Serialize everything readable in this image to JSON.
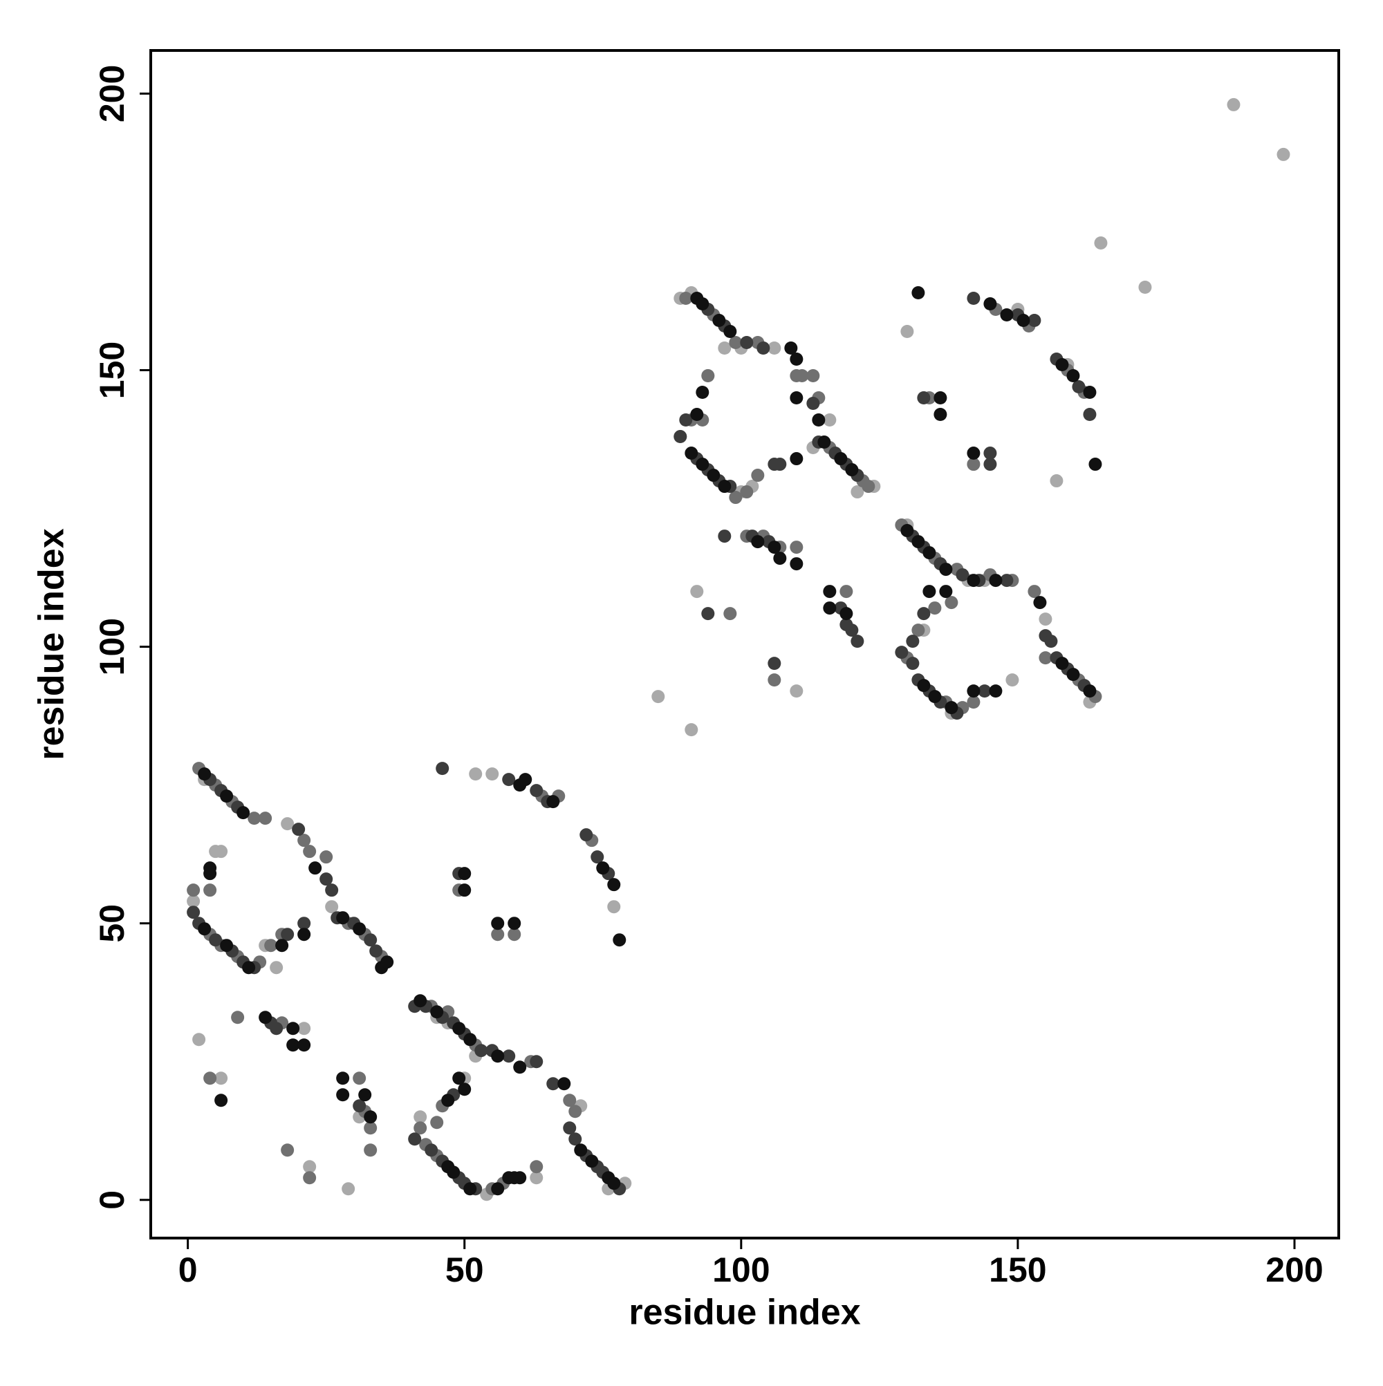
{
  "chart_data": {
    "type": "scatter",
    "xlabel": "residue index",
    "ylabel": "residue index",
    "xlim": [
      -6.7,
      208
    ],
    "ylim": [
      -6.9,
      207.8
    ],
    "xticks": [
      0,
      50,
      100,
      150,
      200
    ],
    "yticks": [
      0,
      50,
      100,
      150,
      200
    ],
    "series": [
      {
        "color": "#111111",
        "x": [
          3,
          7,
          10,
          4,
          4,
          3,
          7,
          11,
          23,
          28,
          31,
          35,
          36,
          17,
          21,
          6,
          14,
          19,
          19,
          21,
          28,
          28,
          32,
          33,
          42,
          45,
          49,
          51,
          56,
          60,
          68,
          47,
          48,
          51,
          56,
          58,
          59,
          60,
          47,
          50,
          49,
          71,
          73,
          76,
          77,
          60,
          61,
          66,
          75,
          77,
          78,
          50,
          50,
          56,
          59,
          92,
          93,
          96,
          98,
          109,
          110,
          93,
          92,
          91,
          93,
          95,
          97,
          110,
          110,
          114,
          115,
          118,
          120,
          103,
          106,
          107,
          110,
          116,
          116,
          119,
          130,
          132,
          134,
          137,
          142,
          146,
          154,
          133,
          135,
          138,
          142,
          146,
          134,
          137,
          158,
          160,
          163,
          132,
          136,
          136,
          142,
          145,
          148,
          151,
          158,
          160,
          163,
          164
        ],
        "y": [
          77,
          73,
          70,
          59,
          60,
          49,
          46,
          42,
          60,
          51,
          49,
          42,
          43,
          46,
          48,
          18,
          33,
          31,
          28,
          28,
          22,
          19,
          19,
          15,
          36,
          34,
          31,
          29,
          26,
          24,
          21,
          6,
          5,
          2,
          2,
          4,
          4,
          4,
          18,
          20,
          22,
          9,
          7,
          4,
          3,
          75,
          76,
          72,
          60,
          57,
          47,
          59,
          56,
          50,
          50,
          163,
          162,
          159,
          157,
          154,
          152,
          146,
          142,
          135,
          133,
          131,
          129,
          134,
          145,
          141,
          137,
          134,
          132,
          119,
          118,
          116,
          115,
          110,
          107,
          106,
          121,
          119,
          117,
          114,
          112,
          112,
          108,
          93,
          91,
          89,
          92,
          92,
          110,
          110,
          97,
          95,
          92,
          164,
          145,
          142,
          135,
          162,
          160,
          159,
          151,
          149,
          146,
          133
        ]
      },
      {
        "color": "#3c3c3c",
        "x": [
          4,
          6,
          9,
          1,
          2,
          5,
          8,
          10,
          12,
          20,
          25,
          26,
          27,
          30,
          33,
          34,
          18,
          21,
          15,
          16,
          31,
          41,
          43,
          46,
          48,
          50,
          53,
          55,
          58,
          63,
          66,
          41,
          44,
          46,
          49,
          50,
          52,
          48,
          69,
          70,
          72,
          74,
          75,
          78,
          58,
          63,
          65,
          72,
          74,
          76,
          46,
          49,
          89,
          90,
          94,
          97,
          101,
          104,
          92,
          94,
          96,
          98,
          106,
          107,
          113,
          114,
          117,
          119,
          121,
          97,
          102,
          105,
          118,
          119,
          120,
          121,
          94,
          106,
          131,
          133,
          136,
          140,
          143,
          148,
          155,
          156,
          129,
          131,
          132,
          134,
          136,
          139,
          144,
          131,
          133,
          157,
          159,
          162,
          133,
          145,
          145,
          142,
          150,
          153,
          157,
          161,
          163
        ],
        "y": [
          76,
          74,
          71,
          52,
          50,
          47,
          45,
          43,
          42,
          67,
          58,
          56,
          51,
          50,
          47,
          45,
          48,
          50,
          32,
          31,
          17,
          35,
          35,
          33,
          32,
          30,
          27,
          27,
          26,
          25,
          21,
          11,
          9,
          7,
          4,
          3,
          2,
          19,
          13,
          11,
          8,
          6,
          5,
          2,
          76,
          74,
          72,
          66,
          62,
          59,
          78,
          59,
          138,
          141,
          161,
          158,
          155,
          154,
          134,
          132,
          130,
          129,
          133,
          133,
          144,
          137,
          135,
          133,
          131,
          120,
          120,
          119,
          107,
          104,
          103,
          101,
          106,
          97,
          120,
          118,
          115,
          113,
          112,
          112,
          102,
          101,
          99,
          97,
          94,
          92,
          90,
          88,
          92,
          101,
          106,
          98,
          96,
          93,
          145,
          135,
          133,
          163,
          160,
          159,
          152,
          147,
          142
        ]
      },
      {
        "color": "#707070",
        "x": [
          2,
          5,
          8,
          12,
          14,
          1,
          4,
          6,
          9,
          13,
          15,
          4,
          21,
          22,
          25,
          29,
          32,
          35,
          17,
          4,
          9,
          17,
          18,
          22,
          31,
          32,
          33,
          33,
          44,
          47,
          52,
          62,
          43,
          45,
          42,
          55,
          57,
          63,
          45,
          46,
          69,
          70,
          73,
          64,
          67,
          49,
          59,
          56,
          90,
          95,
          99,
          103,
          110,
          111,
          91,
          93,
          94,
          99,
          101,
          103,
          113,
          114,
          116,
          122,
          123,
          101,
          104,
          107,
          110,
          98,
          106,
          119,
          129,
          135,
          139,
          145,
          149,
          153,
          130,
          137,
          140,
          142,
          132,
          135,
          138,
          161,
          164,
          155,
          134,
          142,
          146,
          152,
          159,
          162
        ],
        "y": [
          78,
          75,
          72,
          69,
          69,
          56,
          48,
          46,
          44,
          43,
          46,
          56,
          65,
          63,
          62,
          50,
          48,
          44,
          48,
          22,
          33,
          32,
          9,
          4,
          22,
          16,
          13,
          9,
          35,
          34,
          28,
          25,
          10,
          8,
          13,
          2,
          3,
          6,
          14,
          17,
          18,
          16,
          65,
          73,
          73,
          56,
          48,
          48,
          163,
          160,
          155,
          155,
          149,
          149,
          141,
          141,
          149,
          127,
          128,
          131,
          149,
          145,
          136,
          130,
          129,
          120,
          120,
          118,
          118,
          106,
          94,
          110,
          122,
          116,
          114,
          113,
          112,
          110,
          98,
          90,
          89,
          90,
          103,
          107,
          108,
          94,
          91,
          98,
          145,
          133,
          161,
          158,
          150,
          146
        ]
      },
      {
        "color": "#a9a9a9",
        "x": [
          3,
          1,
          6,
          5,
          18,
          26,
          28,
          2,
          6,
          14,
          16,
          21,
          22,
          29,
          31,
          45,
          47,
          54,
          52,
          42,
          63,
          50,
          77,
          52,
          55,
          79,
          76,
          71,
          89,
          91,
          100,
          104,
          106,
          110,
          94,
          89,
          100,
          102,
          97,
          116,
          113,
          124,
          121,
          92,
          110,
          85,
          91,
          144,
          141,
          130,
          133,
          149,
          138,
          155,
          133,
          130,
          157,
          142,
          150,
          159,
          165,
          173,
          189,
          198,
          163
        ],
        "y": [
          76,
          54,
          63,
          63,
          68,
          53,
          51,
          29,
          22,
          46,
          42,
          31,
          6,
          2,
          15,
          33,
          32,
          1,
          26,
          15,
          4,
          22,
          53,
          77,
          77,
          3,
          2,
          17,
          163,
          164,
          154,
          154,
          154,
          152,
          149,
          138,
          128,
          129,
          154,
          141,
          136,
          129,
          128,
          110,
          92,
          91,
          85,
          112,
          112,
          122,
          145,
          94,
          88,
          105,
          103,
          157,
          130,
          133,
          161,
          151,
          173,
          165,
          198,
          189,
          90
        ]
      }
    ]
  }
}
